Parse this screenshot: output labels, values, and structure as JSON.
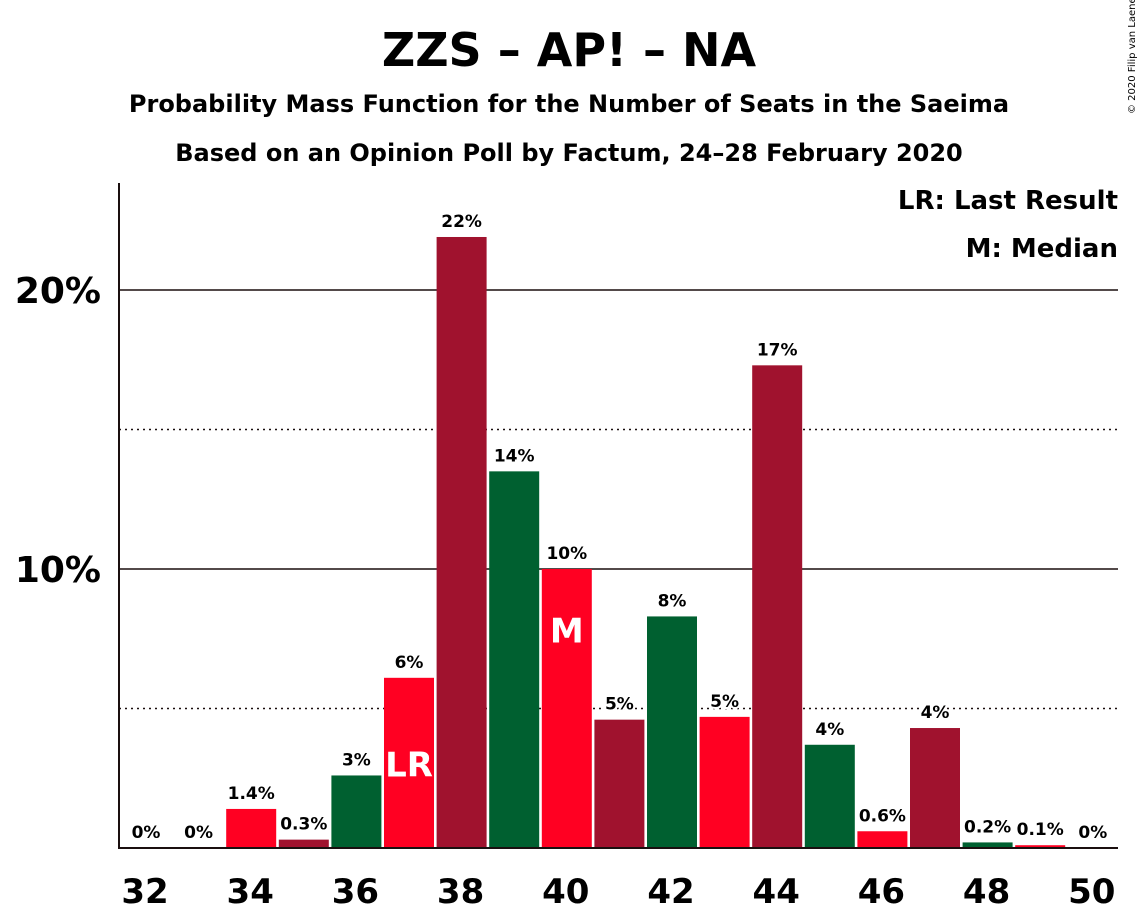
{
  "chart_data": {
    "type": "bar",
    "title": "ZZS – AP! – NA",
    "subtitle_1": "Probability Mass Function for the Number of Seats in the Saeima",
    "subtitle_2": "Based on an Opinion Poll by Factum, 24–28 February 2020",
    "copyright": "© 2020 Filip van Laenen",
    "legend": [
      "LR: Last Result",
      "M: Median"
    ],
    "xlabel": "",
    "ylabel": "",
    "ylim": [
      0,
      24
    ],
    "y_ticks": [
      {
        "value": 10,
        "label": "10%"
      },
      {
        "value": 20,
        "label": "20%"
      }
    ],
    "y_dotted_lines": [
      5,
      15
    ],
    "x_tick_labels": [
      "32",
      "34",
      "36",
      "38",
      "40",
      "42",
      "44",
      "46",
      "48",
      "50"
    ],
    "categories": [
      32,
      33,
      34,
      35,
      36,
      37,
      38,
      39,
      40,
      41,
      42,
      43,
      44,
      45,
      46,
      47,
      48,
      49,
      50
    ],
    "values": [
      0,
      0,
      1.4,
      0.3,
      2.6,
      6.1,
      21.9,
      13.5,
      10.0,
      4.6,
      8.3,
      4.7,
      17.3,
      3.7,
      0.6,
      4.3,
      0.2,
      0.1,
      0
    ],
    "labels": [
      "0%",
      "0%",
      "1.4%",
      "0.3%",
      "3%",
      "6%",
      "22%",
      "14%",
      "10%",
      "5%",
      "8%",
      "5%",
      "17%",
      "4%",
      "0.6%",
      "4%",
      "0.2%",
      "0.1%",
      "0%"
    ],
    "bar_colors": [
      "#a0122e",
      "#006030",
      "#ff0022",
      "#a0122e",
      "#006030",
      "#ff0022",
      "#a0122e",
      "#006030",
      "#ff0022",
      "#a0122e",
      "#006030",
      "#ff0022",
      "#a0122e",
      "#006030",
      "#ff0022",
      "#a0122e",
      "#006030",
      "#ff0022",
      "#a0122e"
    ],
    "markers": [
      {
        "seat": 37,
        "text": "LR"
      },
      {
        "seat": 40,
        "text": "M"
      }
    ],
    "colors": {
      "dark_red": "#a0122e",
      "green": "#006030",
      "red": "#ff0022",
      "text": "#1a0f0f"
    }
  }
}
